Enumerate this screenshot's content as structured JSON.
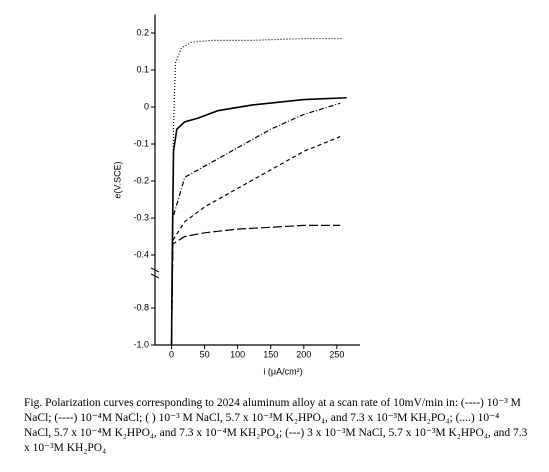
{
  "chart_data": {
    "type": "line",
    "y_label": "e(V.SCE)",
    "x_label": "i (μA/cm²)",
    "caption": "Fig. Polarization curves corresponding to 2024 aluminum alloy at a scan rate of 10mV/min in: (----) 10⁻³ M NaCl; (----) 10⁻⁴M NaCl; (    ) 10⁻³ M NaCl, 5.7 x 10⁻³M K₂HPO₄, and 7.3 x 10⁻³M KH₂PO₄; (....) 10⁻⁴ NaCl, 5.7 x 10⁻⁴M K₂HPO₄, and 7.3 x 10⁻⁴M KH₂PO₄; (---) 3 x 10⁻³M NaCl, 5.7 x 10⁻³M K₂HPO₄, and 7.3 x 10⁻³M KH₂PO₄",
    "xlim": [
      -25,
      285
    ],
    "xticks": [
      0,
      50,
      100,
      150,
      200,
      250
    ],
    "ylim": [
      -1.0,
      0.25
    ],
    "yticks": [
      0.2,
      0.1,
      0,
      -0.1,
      -0.2,
      -0.3,
      -0.4,
      -0.8,
      {
        "value": -1.0,
        "label": "-1.0"
      }
    ],
    "series": [
      {
        "color": "#000000",
        "dash": "dotted",
        "x": [
          0,
          1,
          3,
          6,
          15,
          30,
          60,
          120,
          200,
          260
        ],
        "values": [
          -1.0,
          -0.4,
          -0.05,
          0.12,
          0.16,
          0.175,
          0.18,
          0.18,
          0.185,
          0.185
        ]
      },
      {
        "color": "#000000",
        "dash": "solid",
        "x": [
          0,
          1,
          3,
          8,
          20,
          40,
          70,
          120,
          200,
          265
        ],
        "values": [
          -1.0,
          -0.45,
          -0.12,
          -0.06,
          -0.04,
          -0.03,
          -0.01,
          0.005,
          0.02,
          0.025
        ]
      },
      {
        "color": "#000000",
        "dash": "dashdot",
        "x": [
          0,
          2,
          20,
          50,
          100,
          150,
          200,
          255
        ],
        "values": [
          -1.0,
          -0.3,
          -0.19,
          -0.16,
          -0.11,
          -0.06,
          -0.02,
          0.01
        ]
      },
      {
        "color": "#000000",
        "dash": "dashed",
        "x": [
          0,
          2,
          20,
          50,
          100,
          150,
          200,
          255
        ],
        "values": [
          -1.0,
          -0.36,
          -0.31,
          -0.27,
          -0.22,
          -0.17,
          -0.12,
          -0.08
        ]
      },
      {
        "color": "#000000",
        "dash": "longdash",
        "x": [
          0,
          2,
          20,
          50,
          100,
          150,
          200,
          255
        ],
        "values": [
          -1.0,
          -0.37,
          -0.35,
          -0.34,
          -0.33,
          -0.325,
          -0.32,
          -0.32
        ]
      }
    ]
  }
}
